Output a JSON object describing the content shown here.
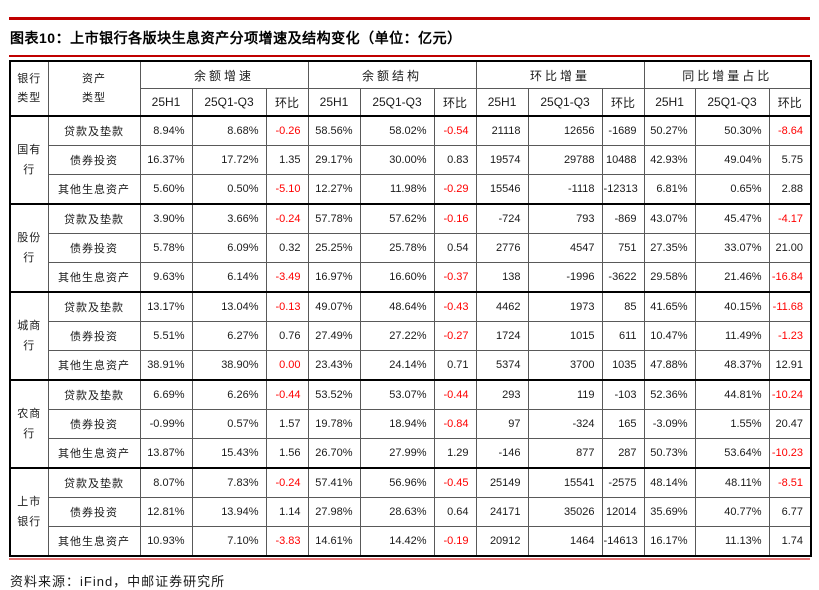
{
  "title": "图表10：上市银行各版块生息资产分项增速及结构变化（单位：亿元）",
  "source": "资料来源：iFind，中邮证券研究所",
  "colors": {
    "accent_red_rule": "#c00000",
    "bottom_rule_red": "#e57373",
    "negative_value_red": "#ff0000",
    "border_dark": "#000000",
    "border_light": "#595959"
  },
  "chart_data": {
    "type": "table",
    "title": "图表10：上市银行各版块生息资产分项增速及结构变化（单位：亿元）",
    "corner_headers": [
      "银行\n类型",
      "资产\n类型"
    ],
    "column_groups": [
      "余额增速",
      "余额结构",
      "环比增量",
      "同比增量占比"
    ],
    "sub_headers": [
      "25H1",
      "25Q1-Q3",
      "环比"
    ],
    "bank_groups": [
      {
        "bank": "国有\n行",
        "rows": [
          {
            "asset": "贷款及垫款",
            "values": [
              "8.94%",
              "8.68%",
              "-0.26",
              "58.56%",
              "58.02%",
              "-0.54",
              "21118",
              "12656",
              "-1689",
              "50.27%",
              "50.30%",
              "-8.64"
            ],
            "red": [
              2,
              5,
              11
            ]
          },
          {
            "asset": "债券投资",
            "values": [
              "16.37%",
              "17.72%",
              "1.35",
              "29.17%",
              "30.00%",
              "0.83",
              "19574",
              "29788",
              "10488",
              "42.93%",
              "49.04%",
              "5.75"
            ],
            "red": []
          },
          {
            "asset": "其他生息资产",
            "values": [
              "5.60%",
              "0.50%",
              "-5.10",
              "12.27%",
              "11.98%",
              "-0.29",
              "15546",
              "-1118",
              "-12313",
              "6.81%",
              "0.65%",
              "2.88"
            ],
            "red": [
              2,
              5
            ]
          }
        ]
      },
      {
        "bank": "股份\n行",
        "rows": [
          {
            "asset": "贷款及垫款",
            "values": [
              "3.90%",
              "3.66%",
              "-0.24",
              "57.78%",
              "57.62%",
              "-0.16",
              "-724",
              "793",
              "-869",
              "43.07%",
              "45.47%",
              "-4.17"
            ],
            "red": [
              2,
              5,
              11
            ]
          },
          {
            "asset": "债券投资",
            "values": [
              "5.78%",
              "6.09%",
              "0.32",
              "25.25%",
              "25.78%",
              "0.54",
              "2776",
              "4547",
              "751",
              "27.35%",
              "33.07%",
              "21.00"
            ],
            "red": []
          },
          {
            "asset": "其他生息资产",
            "values": [
              "9.63%",
              "6.14%",
              "-3.49",
              "16.97%",
              "16.60%",
              "-0.37",
              "138",
              "-1996",
              "-3622",
              "29.58%",
              "21.46%",
              "-16.84"
            ],
            "red": [
              2,
              5,
              11
            ]
          }
        ]
      },
      {
        "bank": "城商\n行",
        "rows": [
          {
            "asset": "贷款及垫款",
            "values": [
              "13.17%",
              "13.04%",
              "-0.13",
              "49.07%",
              "48.64%",
              "-0.43",
              "4462",
              "1973",
              "85",
              "41.65%",
              "40.15%",
              "-11.68"
            ],
            "red": [
              2,
              5,
              11
            ]
          },
          {
            "asset": "债券投资",
            "values": [
              "5.51%",
              "6.27%",
              "0.76",
              "27.49%",
              "27.22%",
              "-0.27",
              "1724",
              "1015",
              "611",
              "10.47%",
              "11.49%",
              "-1.23"
            ],
            "red": [
              5,
              11
            ]
          },
          {
            "asset": "其他生息资产",
            "values": [
              "38.91%",
              "38.90%",
              "0.00",
              "23.43%",
              "24.14%",
              "0.71",
              "5374",
              "3700",
              "1035",
              "47.88%",
              "48.37%",
              "12.91"
            ],
            "red": [
              2
            ]
          }
        ]
      },
      {
        "bank": "农商\n行",
        "rows": [
          {
            "asset": "贷款及垫款",
            "values": [
              "6.69%",
              "6.26%",
              "-0.44",
              "53.52%",
              "53.07%",
              "-0.44",
              "293",
              "119",
              "-103",
              "52.36%",
              "44.81%",
              "-10.24"
            ],
            "red": [
              2,
              5,
              11
            ]
          },
          {
            "asset": "债券投资",
            "values": [
              "-0.99%",
              "0.57%",
              "1.57",
              "19.78%",
              "18.94%",
              "-0.84",
              "97",
              "-324",
              "165",
              "-3.09%",
              "1.55%",
              "20.47"
            ],
            "red": [
              5
            ]
          },
          {
            "asset": "其他生息资产",
            "values": [
              "13.87%",
              "15.43%",
              "1.56",
              "26.70%",
              "27.99%",
              "1.29",
              "-146",
              "877",
              "287",
              "50.73%",
              "53.64%",
              "-10.23"
            ],
            "red": [
              11
            ]
          }
        ]
      },
      {
        "bank": "上市\n银行",
        "rows": [
          {
            "asset": "贷款及垫款",
            "values": [
              "8.07%",
              "7.83%",
              "-0.24",
              "57.41%",
              "56.96%",
              "-0.45",
              "25149",
              "15541",
              "-2575",
              "48.14%",
              "48.11%",
              "-8.51"
            ],
            "red": [
              2,
              5,
              11
            ]
          },
          {
            "asset": "债券投资",
            "values": [
              "12.81%",
              "13.94%",
              "1.14",
              "27.98%",
              "28.63%",
              "0.64",
              "24171",
              "35026",
              "12014",
              "35.69%",
              "40.77%",
              "6.77"
            ],
            "red": []
          },
          {
            "asset": "其他生息资产",
            "values": [
              "10.93%",
              "7.10%",
              "-3.83",
              "14.61%",
              "14.42%",
              "-0.19",
              "20912",
              "1464",
              "-14613",
              "16.17%",
              "11.13%",
              "1.74"
            ],
            "red": [
              2,
              5
            ]
          }
        ]
      }
    ]
  }
}
